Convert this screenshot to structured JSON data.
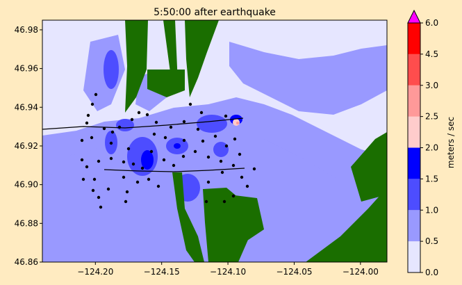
{
  "chart_data": {
    "type": "heatmap",
    "title": "5:50:00 after earthquake",
    "xlim": [
      -124.24,
      -123.98
    ],
    "ylim": [
      46.86,
      46.985
    ],
    "xticks": [
      -124.2,
      -124.15,
      -124.1,
      -124.05,
      -124.0
    ],
    "xtick_labels": [
      "−124.20",
      "−124.15",
      "−124.10",
      "−124.05",
      "−124.00"
    ],
    "yticks": [
      46.86,
      46.88,
      46.9,
      46.92,
      46.94,
      46.96,
      46.98
    ],
    "ytick_labels": [
      "46.86",
      "46.88",
      "46.90",
      "46.92",
      "46.94",
      "46.96",
      "46.98"
    ],
    "colorbar": {
      "label": "meters / sec",
      "bounds": [
        0.0,
        0.5,
        1.0,
        1.5,
        2.0,
        2.5,
        3.0,
        4.5,
        6.0
      ],
      "tick_labels": [
        "0.0",
        "0.5",
        "1.0",
        "1.5",
        "2.0",
        "2.5",
        "3.0",
        "4.5",
        "6.0"
      ],
      "colors": [
        "#e6e6ff",
        "#9999ff",
        "#4d4dff",
        "#0000ff",
        "#ffcccc",
        "#ff9999",
        "#ff4d4d",
        "#ff0000"
      ],
      "extend_color": "#ff00ff"
    },
    "land_color": "#1a6e00",
    "marker_color": "#000000"
  }
}
